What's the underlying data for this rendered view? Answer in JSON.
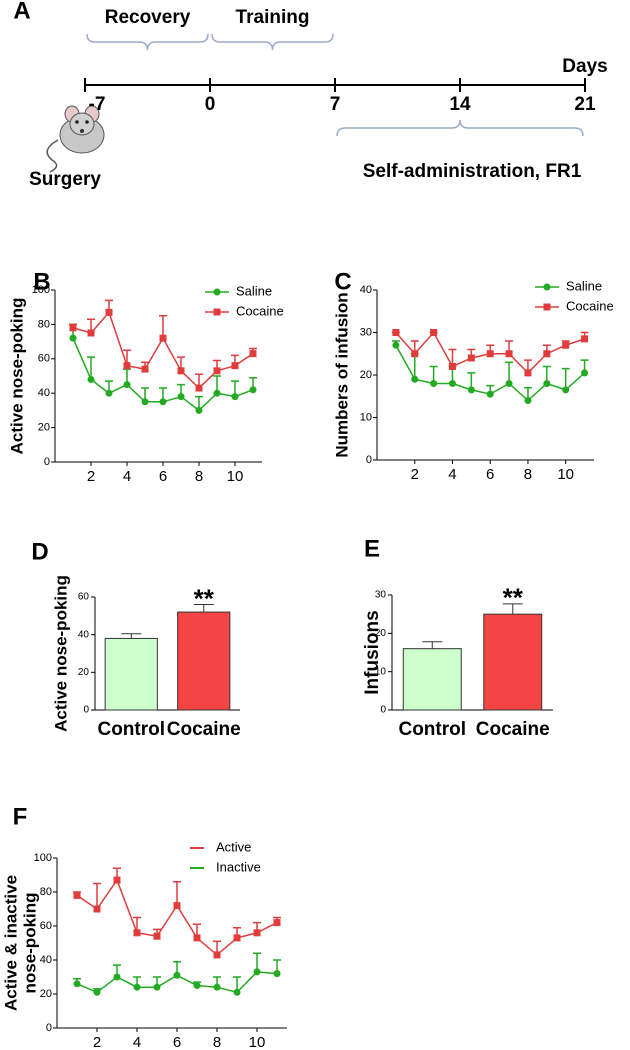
{
  "chart_data": [
    {
      "type": "timeline",
      "panel": "A",
      "xlim": [
        -7,
        21
      ],
      "xticks": [
        -7,
        0,
        7,
        14,
        21
      ],
      "xlabel": "Days",
      "annotations": [
        {
          "text": "Recovery",
          "from": -7,
          "to": 0,
          "side": "above"
        },
        {
          "text": "Training",
          "from": 0,
          "to": 7,
          "side": "above"
        },
        {
          "text": "Self-administration, FR1",
          "from": 7,
          "to": 21,
          "side": "below"
        }
      ],
      "event": {
        "text": "Surgery",
        "at": -7
      }
    },
    {
      "type": "line",
      "panel": "B",
      "ylabel": "Active nose-poking",
      "x": [
        1,
        2,
        3,
        4,
        5,
        6,
        7,
        8,
        9,
        10,
        11
      ],
      "xlim": [
        0,
        11.5
      ],
      "xticks": [
        2,
        4,
        6,
        8,
        10
      ],
      "ylim": [
        0,
        100
      ],
      "yticks": [
        0,
        20,
        40,
        60,
        80,
        100
      ],
      "series": [
        {
          "name": "Saline",
          "color": "#22aa22",
          "marker": "circle",
          "values": [
            72,
            48,
            40,
            45,
            35,
            35,
            38,
            30,
            40,
            38,
            42
          ],
          "errors": [
            8,
            13,
            7,
            9,
            8,
            8,
            7,
            8,
            10,
            9,
            7
          ]
        },
        {
          "name": "Cocaine",
          "color": "#e03c3c",
          "marker": "square",
          "values": [
            78,
            75,
            87,
            56,
            54,
            72,
            53,
            43,
            53,
            56,
            63
          ],
          "errors": [
            2,
            8,
            7,
            9,
            4,
            13,
            8,
            8,
            6,
            6,
            3
          ]
        }
      ]
    },
    {
      "type": "line",
      "panel": "C",
      "ylabel": "Numbers of infusion",
      "x": [
        1,
        2,
        3,
        4,
        5,
        6,
        7,
        8,
        9,
        10,
        11
      ],
      "xlim": [
        0,
        11.5
      ],
      "xticks": [
        2,
        4,
        6,
        8,
        10
      ],
      "ylim": [
        0,
        40
      ],
      "yticks": [
        0,
        10,
        20,
        30,
        40
      ],
      "series": [
        {
          "name": "Saline",
          "color": "#22aa22",
          "marker": "circle",
          "values": [
            27,
            19,
            18,
            18,
            16.5,
            15.5,
            18,
            14,
            18,
            16.5,
            20.5
          ],
          "errors": [
            1,
            6,
            4,
            4,
            4,
            2,
            5,
            3,
            4,
            5,
            3
          ]
        },
        {
          "name": "Cocaine",
          "color": "#e03c3c",
          "marker": "square",
          "values": [
            30,
            25,
            30,
            22,
            24,
            25,
            25,
            20.5,
            25,
            27,
            28.5
          ],
          "errors": [
            0,
            3,
            0,
            4,
            2,
            2,
            3,
            3,
            2,
            1,
            1.5
          ]
        }
      ]
    },
    {
      "type": "bar",
      "panel": "D",
      "ylabel": "Active nose-poking",
      "categories": [
        "Control",
        "Cocaine"
      ],
      "values": [
        38,
        52
      ],
      "errors": [
        2.5,
        4
      ],
      "colors": [
        "#ccffcc",
        "#f44444"
      ],
      "ylim": [
        0,
        60
      ],
      "yticks": [
        0,
        20,
        40,
        60
      ],
      "annotation": {
        "text": "**",
        "category": "Cocaine"
      }
    },
    {
      "type": "bar",
      "panel": "E",
      "ylabel": "Infusions",
      "categories": [
        "Control",
        "Cocaine"
      ],
      "values": [
        16,
        25
      ],
      "errors": [
        1.8,
        2.7
      ],
      "colors": [
        "#ccffcc",
        "#f44444"
      ],
      "ylim": [
        0,
        30
      ],
      "yticks": [
        0,
        10,
        20,
        30
      ],
      "annotation": {
        "text": "**",
        "category": "Cocaine"
      }
    },
    {
      "type": "line",
      "panel": "F",
      "ylabel": [
        "Active & inactive",
        "nose-poking"
      ],
      "legend_marker": "line",
      "x": [
        1,
        2,
        3,
        4,
        5,
        6,
        7,
        8,
        9,
        10,
        11
      ],
      "xlim": [
        0,
        11.5
      ],
      "xticks": [
        2,
        4,
        6,
        8,
        10
      ],
      "ylim": [
        0,
        100
      ],
      "yticks": [
        0,
        20,
        40,
        60,
        80,
        100
      ],
      "series": [
        {
          "name": "Active",
          "color": "#e03c3c",
          "marker": "square",
          "values": [
            78,
            70,
            87,
            56,
            54,
            72,
            53,
            43,
            53,
            56,
            62
          ],
          "errors": [
            2,
            15,
            7,
            9,
            4,
            14,
            8,
            8,
            6,
            6,
            3
          ]
        },
        {
          "name": "Inactive",
          "color": "#22aa22",
          "marker": "circle",
          "values": [
            26,
            21,
            30,
            24,
            24,
            31,
            25,
            24,
            21,
            33,
            32
          ],
          "errors": [
            3,
            2,
            7,
            6,
            6,
            8,
            2,
            6,
            9,
            11,
            8
          ]
        }
      ]
    }
  ]
}
